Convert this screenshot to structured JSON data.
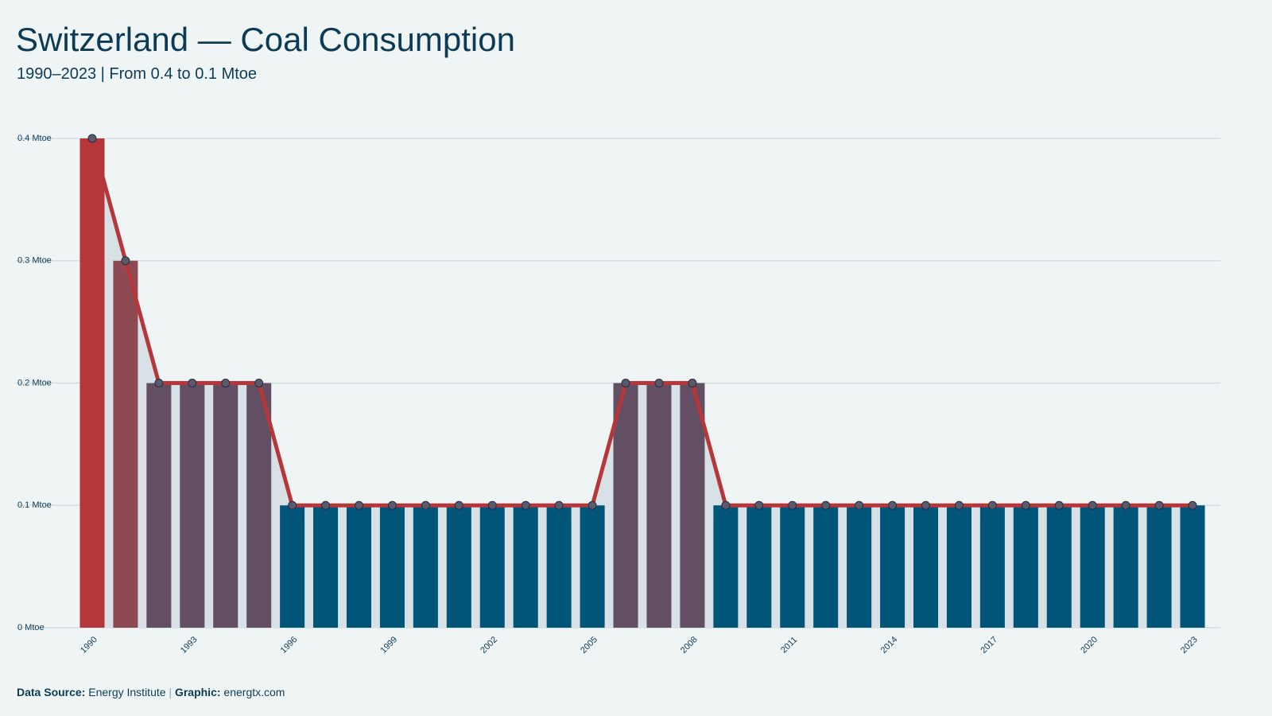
{
  "chart_data": {
    "type": "bar",
    "title": "Switzerland — Coal Consumption",
    "subtitle": "1990–2023 | From 0.4 to 0.1 Mtoe",
    "categories": [
      "1990",
      null,
      null,
      "1993",
      null,
      null,
      "1996",
      null,
      null,
      "1999",
      null,
      null,
      "2002",
      null,
      null,
      "2005",
      null,
      null,
      "2008",
      null,
      null,
      "2011",
      null,
      null,
      "2014",
      null,
      null,
      "2017",
      null,
      null,
      "2020",
      null,
      null,
      "2023"
    ],
    "values": [
      0.4,
      0.3,
      0.2,
      0.2,
      0.2,
      0.2,
      0.1,
      0.1,
      0.1,
      0.1,
      0.1,
      0.1,
      0.1,
      0.1,
      0.1,
      0.1,
      0.2,
      0.2,
      0.2,
      0.1,
      0.1,
      0.1,
      0.1,
      0.1,
      0.1,
      0.1,
      0.1,
      0.1,
      0.1,
      0.1,
      0.1,
      0.1,
      0.1,
      0.1
    ],
    "colors": [
      "#b5373a",
      "#8e4a52",
      "#634f63",
      "#634f63",
      "#634f63",
      "#634f63",
      "#005578",
      "#005578",
      "#005578",
      "#005578",
      "#005578",
      "#005578",
      "#005578",
      "#005578",
      "#005578",
      "#005578",
      "#634f63",
      "#634f63",
      "#634f63",
      "#005578",
      "#005578",
      "#005578",
      "#005578",
      "#005578",
      "#005578",
      "#005578",
      "#005578",
      "#005578",
      "#005578",
      "#005578",
      "#005578",
      "#005578",
      "#005578",
      "#005578"
    ],
    "line_color": "#b5373a",
    "area_color": "#d8e2e6",
    "marker_color": "#5a5a6e",
    "ylim": [
      0,
      0.4
    ],
    "yticks": [
      {
        "value": 0,
        "label": "0 Mtoe"
      },
      {
        "value": 0.1,
        "label": "0.1 Mtoe"
      },
      {
        "value": 0.2,
        "label": "0.2 Mtoe"
      },
      {
        "value": 0.3,
        "label": "0.3 Mtoe"
      },
      {
        "value": 0.4,
        "label": "0.4 Mtoe"
      }
    ],
    "grid": true,
    "footer": {
      "source_label": "Data Source:",
      "source": "Energy Institute",
      "separator": "|",
      "graphic_label": "Graphic:",
      "graphic": "energtx.com"
    }
  }
}
